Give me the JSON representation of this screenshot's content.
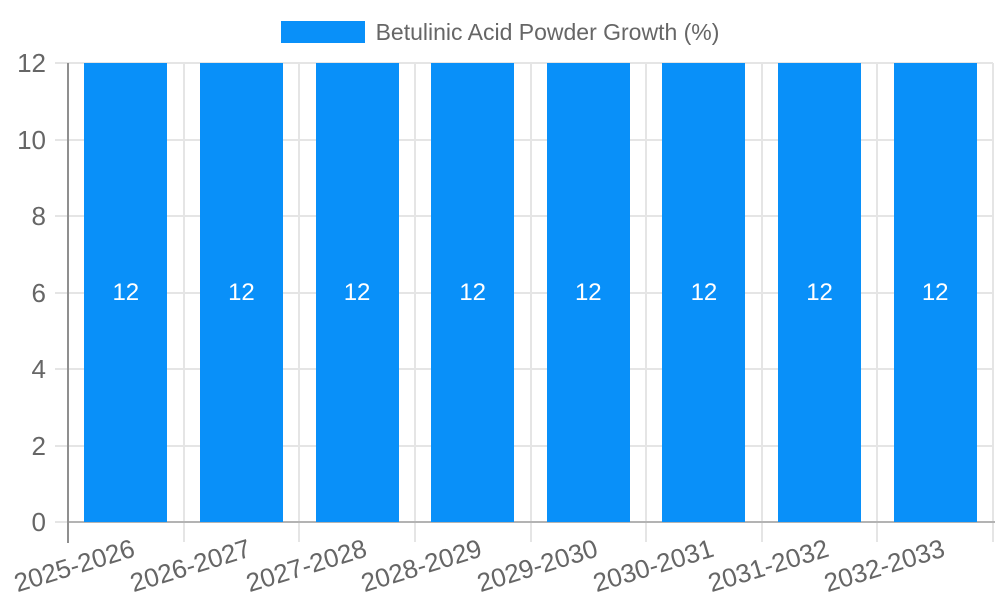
{
  "chart_data": {
    "type": "bar",
    "title": "Betulinic Acid Powder Growth (%)",
    "categories": [
      "2025-2026",
      "2026-2027",
      "2027-2028",
      "2028-2029",
      "2029-2030",
      "2030-2031",
      "2031-2032",
      "2032-2033"
    ],
    "values": [
      12,
      12,
      12,
      12,
      12,
      12,
      12,
      12
    ],
    "bar_value_labels": [
      "12",
      "12",
      "12",
      "12",
      "12",
      "12",
      "12",
      "12"
    ],
    "xlabel": "",
    "ylabel": "",
    "ylim": [
      0,
      12
    ],
    "ytick_interval": 2,
    "ytick_labels": [
      "0",
      "2",
      "4",
      "6",
      "8",
      "10",
      "12"
    ],
    "legend": {
      "position": "top",
      "label": "Betulinic Acid Powder Growth (%)"
    },
    "layout_hints": {
      "grid": true,
      "x_label_rotation_deg": -17,
      "bars_full_height": true
    },
    "colors": {
      "bar": "#0990f9",
      "grid": "#e5e5e5",
      "axis_y": "#8f8f8f",
      "axis_x": "#b3b3b3",
      "tick_text": "#666666",
      "bar_label_text": "#ffffff"
    }
  }
}
